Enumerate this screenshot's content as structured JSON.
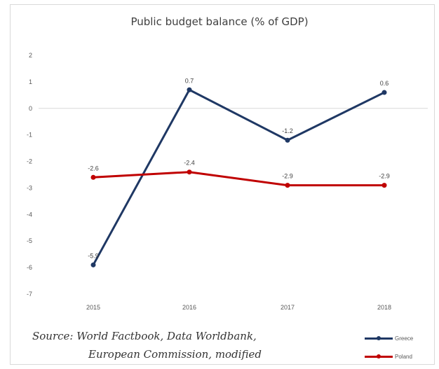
{
  "chart_data": {
    "type": "line",
    "title": "Public budget balance (% of GDP)",
    "categories": [
      "2015",
      "2016",
      "2017",
      "2018"
    ],
    "ylim": [
      -7,
      2
    ],
    "yticks": [
      2,
      1,
      0,
      -1,
      -2,
      -3,
      -4,
      -5,
      -6,
      -7
    ],
    "grid": false,
    "legend_position": "bottom-right",
    "series": [
      {
        "name": "Greece",
        "color": "#1f3864",
        "values": [
          -5.9,
          0.7,
          -1.2,
          0.6
        ],
        "labels": [
          "-5.9",
          "0.7",
          "-1.2",
          "0.6"
        ]
      },
      {
        "name": "Poland",
        "color": "#c00000",
        "values": [
          -2.6,
          -2.4,
          -2.9,
          -2.9
        ],
        "labels": [
          "-2.6",
          "-2.4",
          "-2.9",
          "-2.9"
        ]
      }
    ]
  },
  "source": {
    "line1": "Source: World Factbook, Data Worldbank,",
    "line2": "European Commission, modified"
  }
}
